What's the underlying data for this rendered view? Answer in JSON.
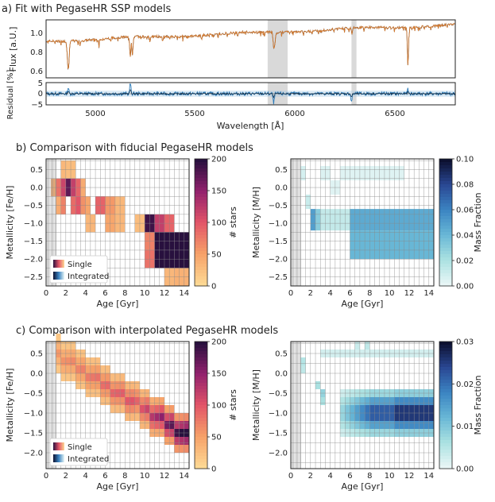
{
  "panel_a": {
    "title": "a) Fit with PegaseHR SSP models",
    "ylabel_top": "Flux [a.U.]",
    "ylabel_bottom": "Residual [%]",
    "xlabel": "Wavelength [Å]",
    "top_yticks": [
      "1.0",
      "0.8",
      "0.6"
    ],
    "bottom_yticks": [
      "5",
      "0",
      "−5"
    ],
    "xticks": [
      "5000",
      "5500",
      "6000",
      "6500"
    ]
  },
  "panel_b": {
    "title": "b) Comparison with fiducial PegasesHR models"
  },
  "panel_c": {
    "title": "c) Comparison with interpolated PegaseHR models"
  },
  "legend": {
    "single": "Single",
    "integrated": "Integrated"
  },
  "left_heatmap": {
    "ylabel": "Metallicity [Fe/H]",
    "xlabel": "Age [Gyr]",
    "cbar_label": "# stars",
    "cbar_ticks": [
      "200",
      "150",
      "100",
      "50",
      "0"
    ]
  },
  "right_heatmap": {
    "ylabel": "Metallicity [M/H]",
    "xlabel": "Age [Gyr]",
    "cbar_label": "Mass Fraction"
  },
  "b_right_cbar_ticks": [
    "0.10",
    "0.08",
    "0.06",
    "0.04",
    "0.02",
    "0.00"
  ],
  "c_right_cbar_ticks": [
    "0.03",
    "0.02",
    "0.01",
    "0.00"
  ],
  "b_yticks": [
    "0.5",
    "0.0",
    "−0.5",
    "−1.0",
    "−1.5",
    "−2.0",
    "−2.5"
  ],
  "c_yticks": [
    "0.5",
    "0.0",
    "−0.5",
    "−1.0",
    "−1.5",
    "−2.0"
  ],
  "xticks_age": [
    "0",
    "2",
    "4",
    "6",
    "8",
    "10",
    "12",
    "14"
  ],
  "colors": {
    "spectrum_obs": "#1f2937",
    "spectrum_model": "#d97a2b",
    "residual": "#2b7bba",
    "mask": "#d9d9d9",
    "grid": "#888888"
  },
  "chart_data": [
    {
      "type": "line",
      "title": "a) Fit with PegaseHR SSP models",
      "xlabel": "Wavelength [Å]",
      "ylabel": "Flux [a.U.]",
      "xlim": [
        4750,
        6800
      ],
      "ylim": [
        0.5,
        1.1
      ],
      "masked_regions": [
        [
          5860,
          5960
        ],
        [
          6280,
          6305
        ]
      ],
      "series": [],
      "x": [
        4750,
        4850,
        4861,
        4900,
        5000,
        5100,
        5172,
        5183,
        5300,
        5400,
        5500,
        5600,
        5700,
        5800,
        5890,
        5896,
        6000,
        6100,
        6200,
        6300,
        6400,
        6500,
        6563,
        6600,
        6700,
        6800
      ],
      "values": [
        0.88,
        0.9,
        0.6,
        0.92,
        0.94,
        0.95,
        0.72,
        0.74,
        0.97,
        0.98,
        0.99,
        1.0,
        1.01,
        1.02,
        0.85,
        0.85,
        1.03,
        1.03,
        1.04,
        1.04,
        1.05,
        1.05,
        0.68,
        1.05,
        1.05,
        1.04
      ]
    },
    {
      "type": "heatmap",
      "title": "b) Comparison with fiducial PegaseHR models (single stars)",
      "xlabel": "Age [Gyr]",
      "ylabel": "Metallicity [Fe/H]",
      "colorbar": "# stars",
      "clim": [
        0,
        200
      ],
      "xlim": [
        0,
        14.5
      ],
      "ylim": [
        -2.5,
        0.8
      ],
      "cells": [
        {
          "age": [
            1.5,
            2.0
          ],
          "feh": [
            0.25,
            0.75
          ],
          "n": 30
        },
        {
          "age": [
            2.0,
            3.0
          ],
          "feh": [
            0.25,
            0.75
          ],
          "n": 25
        },
        {
          "age": [
            0.5,
            1.0
          ],
          "feh": [
            -0.25,
            0.25
          ],
          "n": 35
        },
        {
          "age": [
            1.0,
            1.5
          ],
          "feh": [
            -0.25,
            0.25
          ],
          "n": 80
        },
        {
          "age": [
            1.5,
            2.0
          ],
          "feh": [
            -0.25,
            0.25
          ],
          "n": 115
        },
        {
          "age": [
            2.0,
            2.5
          ],
          "feh": [
            -0.25,
            0.25
          ],
          "n": 175
        },
        {
          "age": [
            2.5,
            3.0
          ],
          "feh": [
            -0.25,
            0.25
          ],
          "n": 120
        },
        {
          "age": [
            3.0,
            3.5
          ],
          "feh": [
            -0.25,
            0.25
          ],
          "n": 90
        },
        {
          "age": [
            3.5,
            4.0
          ],
          "feh": [
            -0.25,
            0.25
          ],
          "n": 40
        },
        {
          "age": [
            1.0,
            1.5
          ],
          "feh": [
            -0.75,
            -0.25
          ],
          "n": 40
        },
        {
          "age": [
            1.5,
            2.0
          ],
          "feh": [
            -0.75,
            -0.25
          ],
          "n": 70
        },
        {
          "age": [
            2.5,
            3.0
          ],
          "feh": [
            -0.75,
            -0.25
          ],
          "n": 85
        },
        {
          "age": [
            3.0,
            3.5
          ],
          "feh": [
            -0.75,
            -0.25
          ],
          "n": 100
        },
        {
          "age": [
            3.5,
            4.0
          ],
          "feh": [
            -0.75,
            -0.25
          ],
          "n": 60
        },
        {
          "age": [
            4.0,
            4.5
          ],
          "feh": [
            -0.75,
            -0.25
          ],
          "n": 45
        },
        {
          "age": [
            5.0,
            6.0
          ],
          "feh": [
            -0.75,
            -0.25
          ],
          "n": 90
        },
        {
          "age": [
            6.0,
            7.0
          ],
          "feh": [
            -0.75,
            -0.25
          ],
          "n": 55
        },
        {
          "age": [
            7.0,
            8.0
          ],
          "feh": [
            -0.75,
            -0.25
          ],
          "n": 30
        },
        {
          "age": [
            4.0,
            5.0
          ],
          "feh": [
            -1.25,
            -0.75
          ],
          "n": 30
        },
        {
          "age": [
            6.0,
            7.0
          ],
          "feh": [
            -1.25,
            -0.75
          ],
          "n": 45
        },
        {
          "age": [
            7.0,
            8.0
          ],
          "feh": [
            -1.25,
            -0.75
          ],
          "n": 30
        },
        {
          "age": [
            9.0,
            10.0
          ],
          "feh": [
            -1.25,
            -0.75
          ],
          "n": 25
        },
        {
          "age": [
            10.0,
            11.0
          ],
          "feh": [
            -1.25,
            -0.75
          ],
          "n": 190
        },
        {
          "age": [
            11.0,
            12.0
          ],
          "feh": [
            -1.25,
            -0.75
          ],
          "n": 120
        },
        {
          "age": [
            12.0,
            13.0
          ],
          "feh": [
            -1.25,
            -0.75
          ],
          "n": 90
        },
        {
          "age": [
            10.0,
            11.0
          ],
          "feh": [
            -1.75,
            -1.25
          ],
          "n": 70
        },
        {
          "age": [
            11.0,
            12.0
          ],
          "feh": [
            -1.75,
            -1.25
          ],
          "n": 200
        },
        {
          "age": [
            12.0,
            13.0
          ],
          "feh": [
            -1.75,
            -1.25
          ],
          "n": 200
        },
        {
          "age": [
            13.0,
            14.5
          ],
          "feh": [
            -1.75,
            -1.25
          ],
          "n": 200
        },
        {
          "age": [
            10.0,
            11.0
          ],
          "feh": [
            -2.25,
            -1.75
          ],
          "n": 80
        },
        {
          "age": [
            11.0,
            12.0
          ],
          "feh": [
            -2.25,
            -1.75
          ],
          "n": 200
        },
        {
          "age": [
            12.0,
            13.0
          ],
          "feh": [
            -2.25,
            -1.75
          ],
          "n": 200
        },
        {
          "age": [
            13.0,
            14.5
          ],
          "feh": [
            -2.25,
            -1.75
          ],
          "n": 200
        },
        {
          "age": [
            12.0,
            13.0
          ],
          "feh": [
            -2.75,
            -2.25
          ],
          "n": 30
        },
        {
          "age": [
            13.0,
            14.5
          ],
          "feh": [
            -2.75,
            -2.25
          ],
          "n": 35
        }
      ]
    },
    {
      "type": "heatmap",
      "title": "b) Comparison with fiducial PegaseHR models (integrated)",
      "xlabel": "Age [Gyr]",
      "ylabel": "Metallicity [M/H]",
      "colorbar": "Mass Fraction",
      "clim": [
        0,
        0.1
      ],
      "xlim": [
        0,
        14.5
      ],
      "ylim": [
        -2.5,
        0.8
      ],
      "cells": [
        {
          "age": [
            1.0,
            1.5
          ],
          "mh": [
            0.2,
            0.6
          ],
          "frac": 0.006
        },
        {
          "age": [
            3.0,
            4.0
          ],
          "mh": [
            0.2,
            0.6
          ],
          "frac": 0.004
        },
        {
          "age": [
            5.0,
            11.5
          ],
          "mh": [
            0.2,
            0.6
          ],
          "frac": 0.003
        },
        {
          "age": [
            4.0,
            5.0
          ],
          "mh": [
            -0.2,
            0.2
          ],
          "frac": 0.003
        },
        {
          "age": [
            1.5,
            2.0
          ],
          "mh": [
            -0.6,
            -0.2
          ],
          "frac": 0.01
        },
        {
          "age": [
            2.0,
            2.5
          ],
          "mh": [
            -1.2,
            -0.6
          ],
          "frac": 0.05
        },
        {
          "age": [
            2.5,
            3.0
          ],
          "mh": [
            -1.2,
            -0.6
          ],
          "frac": 0.03
        },
        {
          "age": [
            3.0,
            6.0
          ],
          "mh": [
            -1.2,
            -0.6
          ],
          "frac": 0.012
        },
        {
          "age": [
            6.0,
            14.5
          ],
          "mh": [
            -1.2,
            -0.6
          ],
          "frac": 0.045
        },
        {
          "age": [
            6.0,
            14.5
          ],
          "mh": [
            -2.0,
            -1.2
          ],
          "frac": 0.04
        }
      ]
    },
    {
      "type": "heatmap",
      "title": "c) Comparison with interpolated PegaseHR models (single stars)",
      "xlabel": "Age [Gyr]",
      "ylabel": "Metallicity [Fe/H]",
      "colorbar": "# stars",
      "clim": [
        0,
        200
      ],
      "xlim": [
        0,
        14.5
      ],
      "ylim": [
        -2.4,
        0.8
      ],
      "note": "diagonal band of stars from ~2 Gyr, [Fe/H]~0.2 to ~13 Gyr, [Fe/H]~-1.8; densest (~200) at 11-14 Gyr, [Fe/H] -1.0 to -1.6"
    },
    {
      "type": "heatmap",
      "title": "c) Comparison with interpolated PegaseHR models (integrated)",
      "xlabel": "Age [Gyr]",
      "ylabel": "Metallicity [M/H]",
      "colorbar": "Mass Fraction",
      "clim": [
        0,
        0.03
      ],
      "xlim": [
        0,
        14.5
      ],
      "ylim": [
        -2.4,
        0.8
      ],
      "note": "band at [M/H] -1.5 to -0.5 for ages 5-14.5 Gyr, peaking ~0.03 at 11-14 Gyr, [M/H] ~ -1.1"
    }
  ]
}
